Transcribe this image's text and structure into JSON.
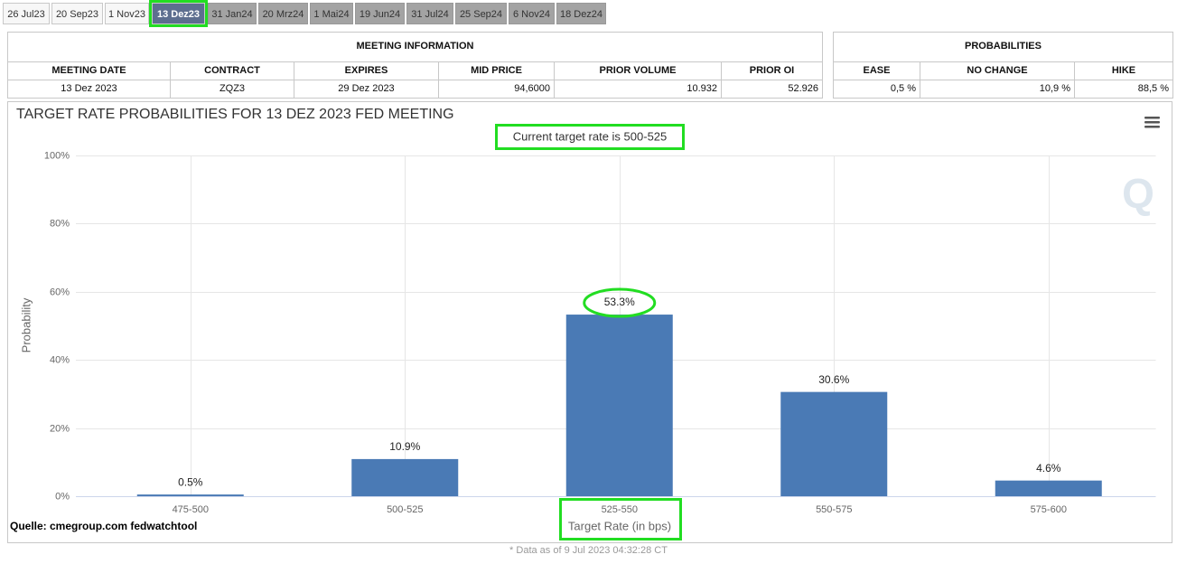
{
  "tabs": [
    "26 Jul23",
    "20 Sep23",
    "1 Nov23",
    "13 Dez23",
    "31 Jan24",
    "20 Mrz24",
    "1 Mai24",
    "19 Jun24",
    "31 Jul24",
    "25 Sep24",
    "6 Nov24",
    "18 Dez24"
  ],
  "meeting_info": {
    "title": "MEETING INFORMATION",
    "headers": [
      "MEETING DATE",
      "CONTRACT",
      "EXPIRES",
      "MID PRICE",
      "PRIOR VOLUME",
      "PRIOR OI"
    ],
    "row": [
      "13 Dez 2023",
      "ZQZ3",
      "29 Dez 2023",
      "94,6000",
      "10.932",
      "52.926"
    ]
  },
  "probabilities": {
    "title": "PROBABILITIES",
    "headers": [
      "EASE",
      "NO CHANGE",
      "HIKE"
    ],
    "row": [
      "0,5 %",
      "10,9 %",
      "88,5 %"
    ]
  },
  "footer": "* Data as of 9 Jul 2023 04:32:28 CT",
  "chart_data": {
    "type": "bar",
    "title": "TARGET RATE PROBABILITIES FOR 13 DEZ 2023 FED MEETING",
    "subtitle": "Current target rate is 500-525",
    "x_label": "Target Rate (in bps)",
    "y_label": "Probability",
    "annotation": "Quelle: cmegroup.com fedwatchtool",
    "categories": [
      "475-500",
      "500-525",
      "525-550",
      "550-575",
      "575-600"
    ],
    "values": [
      0.5,
      10.9,
      53.3,
      30.6,
      4.6
    ],
    "value_labels": [
      "0.5%",
      "10.9%",
      "53.3%",
      "30.6%",
      "4.6%"
    ],
    "color": "#4a7ab5",
    "ylim": [
      0,
      100
    ],
    "yticks": [
      {
        "value": 0,
        "label": "0%"
      },
      {
        "value": 20,
        "label": "20%"
      },
      {
        "value": 40,
        "label": "40%"
      },
      {
        "value": 60,
        "label": "60%"
      },
      {
        "value": 80,
        "label": "80%"
      },
      {
        "value": 100,
        "label": "100%"
      }
    ],
    "grid": true
  }
}
